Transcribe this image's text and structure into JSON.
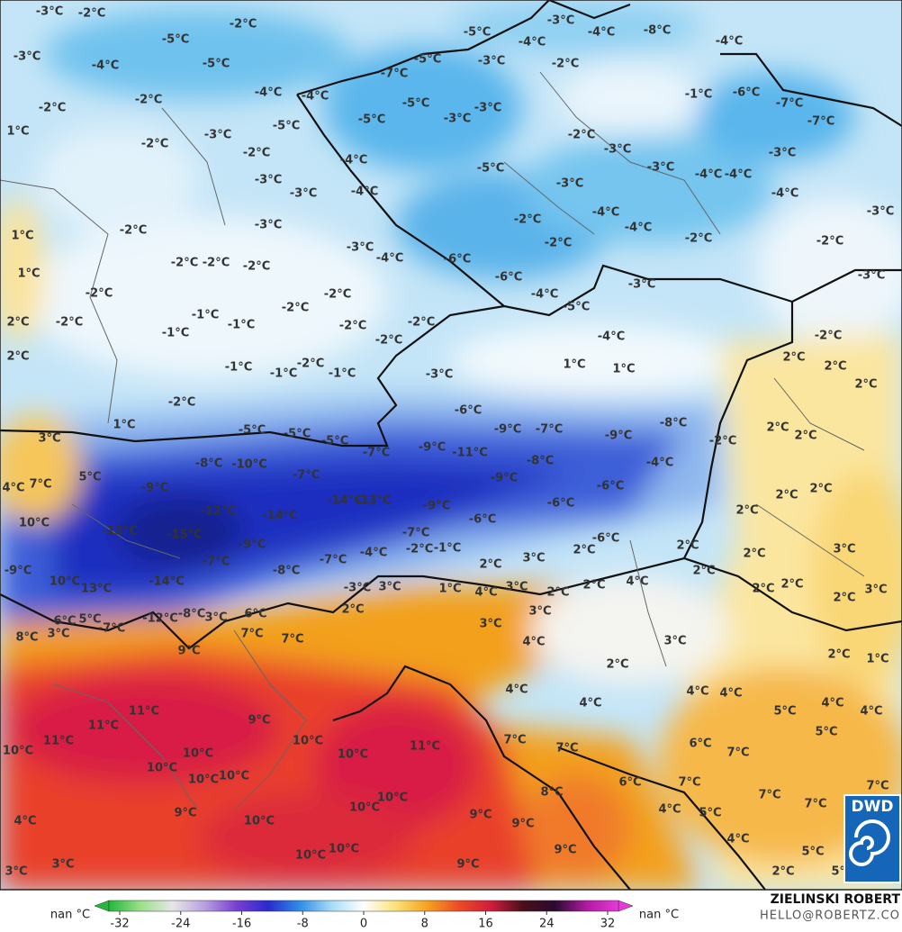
{
  "map": {
    "labels": [
      "-3°C",
      "-2°C",
      "-2°C",
      "-5°C",
      "-3°C",
      "-4°C",
      "-5°C",
      "-2°C",
      "-2°C",
      "-4°C",
      "-4°C",
      "1°C",
      "-2°C",
      "-3°C",
      "-5°C",
      "-2°C",
      "-3°C",
      "-3°C",
      "-3°C",
      "-2°C",
      "1°C",
      "1°C",
      "-2°C",
      "-2°C",
      "-2°C",
      "-2°C",
      "2°C",
      "-2°C",
      "-1°C",
      "-1°C",
      "-1°C",
      "-2°C",
      "-2°C",
      "-2°C",
      "-2°C",
      "-2°C",
      "2°C",
      "-1°C",
      "-1°C",
      "-2°C",
      "-1°C",
      "-2°C",
      "1°C",
      "3°C",
      "-3°C",
      "-4°C",
      "-8°C",
      "-4°C",
      "-5°C",
      "-4°C",
      "-2°C",
      "-3°C",
      "-5°C",
      "-7°C",
      "-1°C",
      "-6°C",
      "-7°C",
      "-7°C",
      "-5°C",
      "-3°C",
      "-3°C",
      "-5°C",
      "-2°C",
      "-3°C",
      "-3°C",
      "-4°C",
      "-5°C",
      "-3°C",
      "-4°C",
      "-4°C",
      "-3°C",
      "-4°C",
      "-4°C",
      "-4°C",
      "-4°C",
      "-2°C",
      "-2°C",
      "-2°C",
      "-3°C",
      "-2°C",
      "-3°C",
      "-4°C",
      "-6°C",
      "-6°C",
      "-4°C",
      "-5°C",
      "-3°C",
      "-3°C",
      "-4°C",
      "-2°C",
      "1°C",
      "1°C",
      "-3°C",
      "2°C",
      "2°C",
      "2°C",
      "-6°C",
      "-9°C",
      "-7°C",
      "-8°C",
      "-9°C",
      "-2°C",
      "2°C",
      "2°C",
      "-5°C",
      "-5°C",
      "-5°C",
      "-7°C",
      "-9°C",
      "-11°C",
      "-8°C",
      "-4°C",
      "-8°C",
      "-10°C",
      "-7°C",
      "-9°C",
      "-6°C",
      "5°C",
      "7°C",
      "4°C",
      "-9°C",
      "-14°C",
      "-13°C",
      "-9°C",
      "-6°C",
      "2°C",
      "2°C",
      "-12°C",
      "-14°C",
      "-6°C",
      "2°C",
      "10°C",
      "-13°C",
      "-15°C",
      "-7°C",
      "-6°C",
      "-9°C",
      "-4°C",
      "-2°C",
      "-1°C",
      "2°C",
      "2°C",
      "3°C",
      "2°C",
      "3°C",
      "-9°C",
      "10°C",
      "-7°C",
      "-7°C",
      "2°C",
      "-8°C",
      "-14°C",
      "2°C",
      "2°C",
      "13°C",
      "-3°C",
      "3°C",
      "1°C",
      "4°C",
      "3°C",
      "2°C",
      "2°C",
      "4°C",
      "2°C",
      "2°C",
      "3°C",
      "6°C",
      "5°C",
      "-12°C",
      "-8°C",
      "3°C",
      "6°C",
      "-7°C",
      "2°C",
      "3°C",
      "8°C",
      "3°C",
      "7°C",
      "3°C",
      "7°C",
      "9°C",
      "3°C",
      "4°C",
      "2°C",
      "2°C",
      "1°C",
      "4°C",
      "4°C",
      "4°C",
      "4°C",
      "4°C",
      "11°C",
      "5°C",
      "4°C",
      "11°C",
      "9°C",
      "11°C",
      "10°C",
      "10°C",
      "10°C",
      "10°C",
      "11°C",
      "7°C",
      "7°C",
      "6°C",
      "7°C",
      "5°C",
      "10°C",
      "10°C",
      "10°C",
      "6°C",
      "7°C",
      "7°C",
      "9°C",
      "10°C",
      "10°C",
      "10°C",
      "8°C",
      "7°C",
      "7°C",
      "4°C",
      "9°C",
      "9°C",
      "5°C",
      "4°C",
      "4°C",
      "10°C",
      "10°C",
      "9°C",
      "5°C",
      "3°C",
      "3°C",
      "9°C",
      "2°C",
      "5°C"
    ]
  },
  "colorbar": {
    "ticks": [
      -32,
      -24,
      -16,
      -8,
      0,
      8,
      16,
      24,
      32
    ],
    "colors": [
      "#22b83a",
      "#9be08a",
      "#e6e6e6",
      "#b9a0e0",
      "#7a3fd0",
      "#2a2ad0",
      "#2f8fe6",
      "#a8dcf7",
      "#ffffff",
      "#fbe27a",
      "#f5a21e",
      "#ec4a25",
      "#d01c3c",
      "#4a0f1a",
      "#2a0a30",
      "#b01aa0",
      "#e63ad8"
    ],
    "under_label": "nan °C",
    "over_label": "nan °C"
  },
  "credit": {
    "name": "ZIELINSKI ROBERT",
    "email": "HELLO@ROBERTZ.CO"
  },
  "logo": {
    "text": "DWD"
  }
}
